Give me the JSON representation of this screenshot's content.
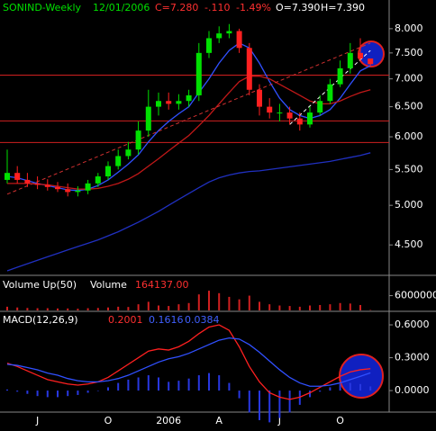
{
  "chart_data": [
    {
      "type": "candlestick",
      "title": "SONIND-Weekly",
      "date": "12/01/2006",
      "close_text": "C=7.280",
      "change": "-.110",
      "change_pct": "-1.49%",
      "open_text": "O=7.390",
      "high_text": "H=7.390",
      "categories": [
        null,
        null,
        null,
        "J",
        null,
        null,
        null,
        null,
        null,
        null,
        "O",
        null,
        null,
        null,
        null,
        null,
        "2006",
        null,
        null,
        null,
        null,
        "A",
        null,
        null,
        null,
        null,
        null,
        "J",
        null,
        null,
        null,
        null,
        null,
        "O",
        null,
        null,
        null
      ],
      "open": [
        5.35,
        5.45,
        5.35,
        5.3,
        5.28,
        5.25,
        5.22,
        5.18,
        5.2,
        5.3,
        5.4,
        5.55,
        5.7,
        5.8,
        6.1,
        6.5,
        6.6,
        6.55,
        6.6,
        6.7,
        7.5,
        7.8,
        7.9,
        7.95,
        7.6,
        6.8,
        6.5,
        6.4,
        6.4,
        6.3,
        6.2,
        6.4,
        6.6,
        6.9,
        7.2,
        7.5,
        7.39
      ],
      "high": [
        5.8,
        5.55,
        5.45,
        5.4,
        5.36,
        5.32,
        5.3,
        5.26,
        5.35,
        5.45,
        5.62,
        5.8,
        5.92,
        6.25,
        6.8,
        6.75,
        6.75,
        6.72,
        6.8,
        7.7,
        7.95,
        8.05,
        8.1,
        8.0,
        7.7,
        6.9,
        6.65,
        6.55,
        6.5,
        6.4,
        6.5,
        6.7,
        7.0,
        7.35,
        7.7,
        7.8,
        7.39
      ],
      "low": [
        5.3,
        5.3,
        5.25,
        5.22,
        5.2,
        5.18,
        5.12,
        5.12,
        5.15,
        5.25,
        5.35,
        5.5,
        5.65,
        5.72,
        6.0,
        6.35,
        6.45,
        6.45,
        6.5,
        6.6,
        7.4,
        7.7,
        7.8,
        7.5,
        6.7,
        6.35,
        6.3,
        6.25,
        6.2,
        6.1,
        6.15,
        6.35,
        6.55,
        6.85,
        7.1,
        7.35,
        7.25
      ],
      "close": [
        5.45,
        5.35,
        5.3,
        5.28,
        5.25,
        5.22,
        5.18,
        5.2,
        5.3,
        5.4,
        5.55,
        5.7,
        5.8,
        6.1,
        6.5,
        6.6,
        6.55,
        6.6,
        6.7,
        7.5,
        7.8,
        7.9,
        7.95,
        7.6,
        6.8,
        6.5,
        6.4,
        6.4,
        6.3,
        6.2,
        6.4,
        6.6,
        6.9,
        7.2,
        7.5,
        7.39,
        7.28
      ],
      "up_color": "#00e000",
      "down_color": "#ff2020",
      "series": [
        {
          "color": "#3050ff",
          "values": [
            5.4,
            5.38,
            5.34,
            5.3,
            5.27,
            5.24,
            5.21,
            5.2,
            5.22,
            5.27,
            5.35,
            5.46,
            5.58,
            5.72,
            5.92,
            6.1,
            6.25,
            6.38,
            6.5,
            6.75,
            7.0,
            7.3,
            7.55,
            7.7,
            7.6,
            7.3,
            6.95,
            6.65,
            6.45,
            6.35,
            6.3,
            6.35,
            6.45,
            6.65,
            6.9,
            7.15,
            7.25
          ]
        },
        {
          "color": "#c01818",
          "values": [
            5.3,
            5.3,
            5.3,
            5.29,
            5.28,
            5.26,
            5.24,
            5.22,
            5.22,
            5.23,
            5.26,
            5.3,
            5.36,
            5.44,
            5.55,
            5.66,
            5.78,
            5.9,
            6.02,
            6.18,
            6.35,
            6.55,
            6.75,
            6.95,
            7.05,
            7.05,
            7.0,
            6.9,
            6.8,
            6.7,
            6.6,
            6.55,
            6.55,
            6.6,
            6.68,
            6.75,
            6.8
          ]
        },
        {
          "color": "#2030c0",
          "values": [
            4.2,
            4.24,
            4.28,
            4.32,
            4.36,
            4.4,
            4.44,
            4.48,
            4.52,
            4.56,
            4.61,
            4.66,
            4.72,
            4.78,
            4.85,
            4.92,
            5.0,
            5.08,
            5.16,
            5.24,
            5.32,
            5.38,
            5.42,
            5.45,
            5.47,
            5.48,
            5.5,
            5.52,
            5.54,
            5.56,
            5.58,
            5.6,
            5.62,
            5.65,
            5.68,
            5.71,
            5.75
          ]
        }
      ],
      "levels": [
        7.07,
        6.26,
        5.91
      ],
      "level_color": "#d02020",
      "trendlines": [
        {
          "color": "#d03030",
          "from": [
            0,
            5.15
          ],
          "to": [
            36,
            7.7
          ]
        },
        {
          "color": "#ffffff",
          "from": [
            28,
            6.2
          ],
          "to": [
            36,
            7.55
          ]
        }
      ],
      "log_scale": true,
      "ylim": [
        4.16,
        8.35
      ],
      "yticks": [
        {
          "value": 8,
          "label": "8.000"
        },
        {
          "value": 7.5,
          "label": "7.500"
        },
        {
          "value": 7,
          "label": "7.000"
        },
        {
          "value": 6.5,
          "label": "6.500"
        },
        {
          "value": 6,
          "label": "6.000"
        },
        {
          "value": 5.5,
          "label": "5.500"
        },
        {
          "value": 5,
          "label": "5.000"
        },
        {
          "value": 4.5,
          "label": "4.500"
        }
      ]
    },
    {
      "type": "bar",
      "label": "Volume Up(50)",
      "label2": "Volume",
      "last_value": "164137.00",
      "color": "#d02020",
      "values": [
        1500000,
        1200000,
        1000000,
        900000,
        900000,
        800000,
        800000,
        700000,
        900000,
        1000000,
        1200000,
        1500000,
        1400000,
        2500000,
        3500000,
        2000000,
        1800000,
        2500000,
        3000000,
        6500000,
        8000000,
        7000000,
        5500000,
        4500000,
        6000000,
        3500000,
        2500000,
        2000000,
        1800000,
        1500000,
        2000000,
        2200000,
        2500000,
        3000000,
        2800000,
        2200000,
        164137
      ],
      "ylim": [
        0,
        13500000
      ],
      "yticks": [
        6000000
      ]
    },
    {
      "type": "line",
      "label": "MACD(12,26,9)",
      "series": [
        {
          "name": "0.2001",
          "color": "#ff2020",
          "values": [
            0.25,
            0.22,
            0.18,
            0.14,
            0.1,
            0.08,
            0.06,
            0.05,
            0.06,
            0.08,
            0.12,
            0.18,
            0.24,
            0.3,
            0.36,
            0.38,
            0.37,
            0.4,
            0.45,
            0.52,
            0.58,
            0.6,
            0.55,
            0.4,
            0.22,
            0.08,
            -0.02,
            -0.06,
            -0.08,
            -0.06,
            -0.02,
            0.03,
            0.08,
            0.13,
            0.17,
            0.19,
            0.2001
          ]
        },
        {
          "name": "0.1616",
          "color": "#3050ff",
          "values": [
            0.24,
            0.23,
            0.21,
            0.19,
            0.16,
            0.14,
            0.11,
            0.09,
            0.08,
            0.08,
            0.09,
            0.11,
            0.14,
            0.18,
            0.22,
            0.26,
            0.29,
            0.31,
            0.34,
            0.38,
            0.42,
            0.46,
            0.48,
            0.47,
            0.42,
            0.35,
            0.27,
            0.19,
            0.12,
            0.07,
            0.04,
            0.04,
            0.05,
            0.07,
            0.1,
            0.13,
            0.1616
          ]
        },
        {
          "name": "0.0384",
          "color": "#2838e0",
          "histogram": true,
          "values": [
            0.01,
            -0.01,
            -0.03,
            -0.05,
            -0.06,
            -0.06,
            -0.05,
            -0.04,
            -0.02,
            0,
            0.03,
            0.07,
            0.1,
            0.12,
            0.14,
            0.12,
            0.08,
            0.09,
            0.11,
            0.14,
            0.16,
            0.14,
            0.07,
            -0.07,
            -0.2,
            -0.27,
            -0.29,
            -0.25,
            -0.2,
            -0.13,
            -0.06,
            -0.01,
            0.03,
            0.06,
            0.07,
            0.06,
            0.0384
          ]
        }
      ],
      "ylim": [
        -0.18,
        0.707
      ],
      "yticks": [
        {
          "value": 0.6,
          "label": "0.6000"
        },
        {
          "value": 0.3,
          "label": "0.3000"
        },
        {
          "value": 0,
          "label": "0.0000"
        }
      ]
    }
  ]
}
